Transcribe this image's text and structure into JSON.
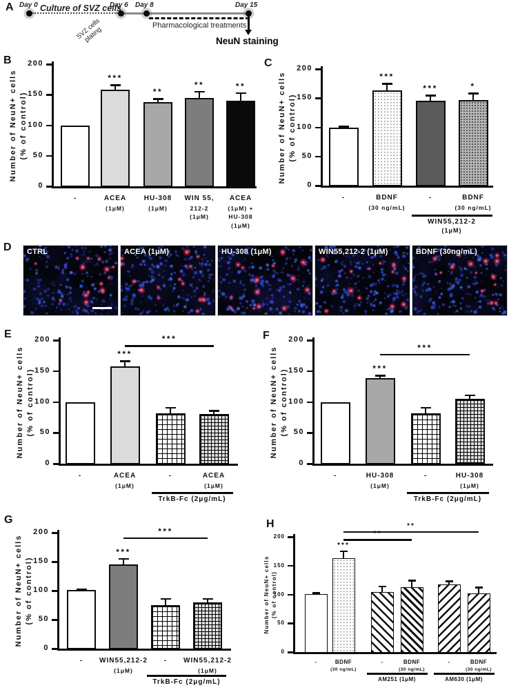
{
  "timeline": {
    "panel_label": "A",
    "days": [
      "Day 0",
      "Day 6",
      "Day 8",
      "Day 15"
    ],
    "culture_label": "Culture of SVZ cells",
    "plating_label_line1": "SVZ cells",
    "plating_label_line2": "plating",
    "treatment_label": "Pharmacological treatments",
    "staining_label": "NeuN staining"
  },
  "micrographs": {
    "panel_label": "D",
    "images": [
      {
        "label": "CTRL"
      },
      {
        "label": "ACEA (1μM)"
      },
      {
        "label": "HU-308 (1μM)"
      },
      {
        "label": "WIN55,212-2 (1μM)"
      },
      {
        "label": "BDNF (30ng/mL)"
      }
    ],
    "scale_bar": "scale-bar"
  },
  "palette": {
    "white": "#ffffff",
    "lightgray": "#dbdbdb",
    "gray": "#a8a8a8",
    "darkgray": "#7d7d7d",
    "black": "#0a0a0a",
    "slate": "#5a5a5a",
    "micrograph_nuclei": "#2b3fd6",
    "micrograph_neun": "#e8336e",
    "micrograph_background": "#04040a"
  },
  "chart_data": [
    {
      "id": "B",
      "panel_label": "B",
      "type": "bar",
      "title": "",
      "xlabel": "",
      "ylabel_line1": "Number of NeuN+ cells",
      "ylabel_line2": "(% of control)",
      "ylim": [
        0,
        200
      ],
      "yticks": [
        0,
        50,
        100,
        150,
        200
      ],
      "grid": false,
      "bars": [
        {
          "label_lines": [
            "-"
          ],
          "value": 100,
          "error": 0,
          "stars": "",
          "fill": "white"
        },
        {
          "label_lines": [
            "ACEA",
            "(1μM)"
          ],
          "value": 158,
          "error": 8,
          "stars": "***",
          "fill": "lightgray"
        },
        {
          "label_lines": [
            "HU-308",
            "(1μM)"
          ],
          "value": 138,
          "error": 5,
          "stars": "**",
          "fill": "gray"
        },
        {
          "label_lines": [
            "WIN 55,",
            "212-2",
            "(1μM)"
          ],
          "value": 145,
          "error": 10,
          "stars": "**",
          "fill": "darkgray"
        },
        {
          "label_lines": [
            "ACEA",
            "(1μM) +",
            "HU-308",
            "(1μM)"
          ],
          "value": 140,
          "error": 13,
          "stars": "**",
          "fill": "black"
        }
      ],
      "sig_lines": [],
      "groups": []
    },
    {
      "id": "C",
      "panel_label": "C",
      "type": "bar",
      "title": "",
      "xlabel": "",
      "ylabel_line1": "Number of NeuN+ cells",
      "ylabel_line2": "(% of control)",
      "ylim": [
        0,
        200
      ],
      "yticks": [
        0,
        50,
        100,
        150,
        200
      ],
      "grid": false,
      "bars": [
        {
          "label_lines": [
            "-"
          ],
          "value": 100,
          "error": 1.5,
          "stars": "",
          "fill": "white"
        },
        {
          "label_lines": [
            "BDNF",
            "(30 ng/mL)"
          ],
          "value": 163,
          "error": 12,
          "stars": "***",
          "fill": "dots-light"
        },
        {
          "label_lines": [
            "-"
          ],
          "value": 145,
          "error": 10,
          "stars": "***",
          "fill": "slate"
        },
        {
          "label_lines": [
            "BDNF",
            "(30 ng/mL)"
          ],
          "value": 147,
          "error": 11,
          "stars": "*",
          "fill": "dots-dark"
        }
      ],
      "sig_lines": [],
      "groups": [
        {
          "from": 2,
          "to": 3,
          "label_lines": [
            "WIN55,212-2",
            "(1μM)"
          ]
        }
      ]
    },
    {
      "id": "E",
      "panel_label": "E",
      "type": "bar",
      "title": "",
      "xlabel": "",
      "ylabel_line1": "Number of NeuN+ cells",
      "ylabel_line2": "(% of control)",
      "ylim": [
        0,
        200
      ],
      "yticks": [
        0,
        50,
        100,
        150,
        200
      ],
      "grid": false,
      "bars": [
        {
          "label_lines": [
            "-"
          ],
          "value": 100,
          "error": 0,
          "stars": "",
          "fill": "white"
        },
        {
          "label_lines": [
            "ACEA",
            "(1μM)"
          ],
          "value": 158,
          "error": 8,
          "stars": "***",
          "fill": "lightgray"
        },
        {
          "label_lines": [
            "-"
          ],
          "value": 82,
          "error": 9,
          "stars": "",
          "fill": "grid-light"
        },
        {
          "label_lines": [
            "ACEA",
            "(1μM)"
          ],
          "value": 80,
          "error": 6,
          "stars": "",
          "fill": "grid-dark"
        }
      ],
      "sig_lines": [
        {
          "from": 1,
          "to": 3,
          "value": 192,
          "stars": "***"
        }
      ],
      "groups": [
        {
          "from": 2,
          "to": 3,
          "label_lines": [
            "TrkB-Fc (2μg/mL)"
          ]
        }
      ]
    },
    {
      "id": "F",
      "panel_label": "F",
      "type": "bar",
      "title": "",
      "xlabel": "",
      "ylabel_line1": "Number of NeuN+ cells",
      "ylabel_line2": "(% of control)",
      "ylim": [
        0,
        200
      ],
      "yticks": [
        0,
        50,
        100,
        150,
        200
      ],
      "grid": false,
      "bars": [
        {
          "label_lines": [
            "-"
          ],
          "value": 100,
          "error": 0,
          "stars": "",
          "fill": "white"
        },
        {
          "label_lines": [
            "HU-308",
            "(1μM)"
          ],
          "value": 138,
          "error": 5,
          "stars": "***",
          "fill": "gray"
        },
        {
          "label_lines": [
            "-"
          ],
          "value": 82,
          "error": 9,
          "stars": "",
          "fill": "grid-light"
        },
        {
          "label_lines": [
            "HU-308",
            "(1μM)"
          ],
          "value": 105,
          "error": 6,
          "stars": "",
          "fill": "grid-dark"
        }
      ],
      "sig_lines": [
        {
          "from": 1,
          "to": 3,
          "value": 178,
          "stars": "***"
        }
      ],
      "groups": [
        {
          "from": 2,
          "to": 3,
          "label_lines": [
            "TrkB-Fc (2μg/mL)"
          ]
        }
      ]
    },
    {
      "id": "G",
      "panel_label": "G",
      "type": "bar",
      "title": "",
      "xlabel": "",
      "ylabel_line1": "Number of NeuN+ cells",
      "ylabel_line2": "(% of control)",
      "ylim": [
        0,
        200
      ],
      "yticks": [
        0,
        50,
        100,
        150,
        200
      ],
      "grid": false,
      "bars": [
        {
          "label_lines": [
            "-"
          ],
          "value": 101,
          "error": 1.5,
          "stars": "",
          "fill": "white"
        },
        {
          "label_lines": [
            "WIN55,212-2",
            "(1μM)"
          ],
          "value": 145,
          "error": 10,
          "stars": "***",
          "fill": "darkgray"
        },
        {
          "label_lines": [
            "-"
          ],
          "value": 75,
          "error": 11,
          "stars": "",
          "fill": "grid-light"
        },
        {
          "label_lines": [
            "WIN55,212-2",
            "(1μM)"
          ],
          "value": 80,
          "error": 6,
          "stars": "",
          "fill": "grid-dark"
        }
      ],
      "sig_lines": [
        {
          "from": 1,
          "to": 3,
          "value": 192,
          "stars": "***"
        }
      ],
      "groups": [
        {
          "from": 2,
          "to": 3,
          "label_lines": [
            "TrkB-Fc (2μg/mL)"
          ]
        }
      ]
    },
    {
      "id": "H",
      "panel_label": "H",
      "type": "bar",
      "title": "",
      "xlabel": "",
      "ylabel_line1": "Number of NeuN+ cells",
      "ylabel_line2": "(% of control)",
      "ylim": [
        0,
        200
      ],
      "yticks": [
        0,
        50,
        100,
        150,
        200
      ],
      "grid": false,
      "bars": [
        {
          "label_lines": [
            "-"
          ],
          "value": 101,
          "error": 1.5,
          "stars": "",
          "fill": "white"
        },
        {
          "label_lines": [
            "BDNF",
            "(30 ng/mL)"
          ],
          "value": 163,
          "error": 12,
          "stars": "***",
          "fill": "dots-light"
        },
        {
          "label_lines": [
            "-"
          ],
          "value": 104,
          "error": 10,
          "stars": "",
          "fill": "hatch-back"
        },
        {
          "label_lines": [
            "BDNF",
            "(30 ng/mL)"
          ],
          "value": 113,
          "error": 11,
          "stars": "",
          "fill": "hatch-back-dense"
        },
        {
          "label_lines": [
            "-"
          ],
          "value": 117,
          "error": 6,
          "stars": "",
          "fill": "hatch-fwd"
        },
        {
          "label_lines": [
            "BDNF",
            "(30 ng/mL)"
          ],
          "value": 102,
          "error": 10,
          "stars": "",
          "fill": "hatch-fwd"
        }
      ],
      "sig_lines": [
        {
          "from": 1,
          "to": 3,
          "value": 196,
          "stars": "**"
        },
        {
          "from": 1,
          "to": 5,
          "value": 210,
          "stars": "**"
        }
      ],
      "groups": [
        {
          "from": 2,
          "to": 3,
          "label_lines": [
            "AM251 (1μM)"
          ]
        },
        {
          "from": 4,
          "to": 5,
          "label_lines": [
            "AM630 (1μM)"
          ]
        }
      ]
    }
  ]
}
